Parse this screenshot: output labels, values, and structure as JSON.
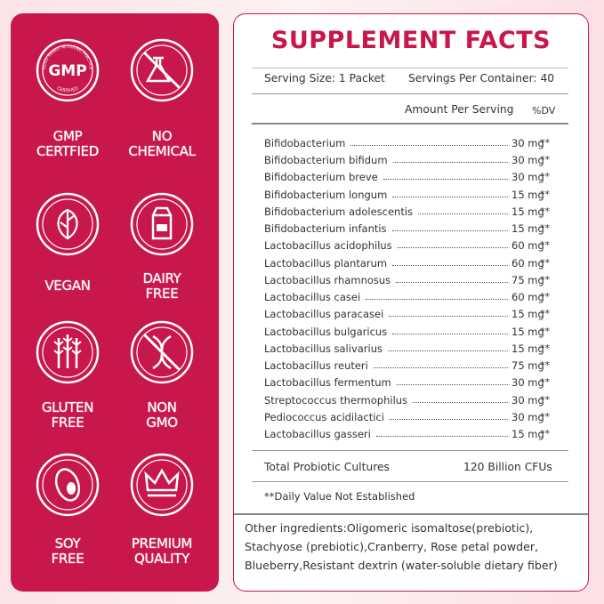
{
  "badges": [
    {
      "lines": [
        "GMP",
        "CERTFIED"
      ]
    },
    {
      "lines": [
        "NO",
        "CHEMICAL"
      ]
    },
    {
      "lines": [
        "VEGAN"
      ]
    },
    {
      "lines": [
        "DAIRY",
        "FREE"
      ]
    },
    {
      "lines": [
        "GLUTEN",
        "FREE"
      ]
    },
    {
      "lines": [
        "NON",
        "GMO"
      ]
    },
    {
      "lines": [
        "SOY",
        "FREE"
      ]
    },
    {
      "lines": [
        "PREMIUM",
        "QUALITY"
      ]
    }
  ],
  "gmp_logo": {
    "center": "GMP",
    "ring_top": "GOOD MANUF ACTURING PRACTICE",
    "ring_bottom": "CERTIFIED"
  },
  "facts": {
    "title": "SUPPLEMENT FACTS",
    "serving_size": "Serving Size: 1 Packet",
    "servings_per_container": "Servings Per Container: 40",
    "amount_header": "Amount Per Serving",
    "dv_header": "%DV",
    "rows": [
      {
        "name": "Bifidobacterium",
        "amount": "30 mg",
        "dv": "**"
      },
      {
        "name": "Bifidobacterium bifidum",
        "amount": "30 mg",
        "dv": "**"
      },
      {
        "name": "Bifidobacterium breve",
        "amount": "30 mg",
        "dv": "**"
      },
      {
        "name": "Bifidobacterium longum",
        "amount": "15 mg",
        "dv": "**"
      },
      {
        "name": "Bifidobacterium adolescentis",
        "amount": "15 mg",
        "dv": "**"
      },
      {
        "name": "Bifidobacterium infantis",
        "amount": "15 mg",
        "dv": "**"
      },
      {
        "name": "Lactobacillus acidophilus",
        "amount": "60 mg",
        "dv": "**"
      },
      {
        "name": "Lactobacillus plantarum",
        "amount": "60 mg",
        "dv": "**"
      },
      {
        "name": "Lactobacillus rhamnosus",
        "amount": "75 mg",
        "dv": "**"
      },
      {
        "name": "Lactobacillus casei",
        "amount": "60 mg",
        "dv": "**"
      },
      {
        "name": "Lactobacillus paracasei",
        "amount": "15 mg",
        "dv": "**"
      },
      {
        "name": "Lactobacillus bulgaricus",
        "amount": "15 mg",
        "dv": "**"
      },
      {
        "name": "Lactobacillus salivarius",
        "amount": "15 mg",
        "dv": "**"
      },
      {
        "name": "Lactobacillus reuteri",
        "amount": "75 mg",
        "dv": "**"
      },
      {
        "name": "Lactobacillus fermentum",
        "amount": "30 mg",
        "dv": "**"
      },
      {
        "name": "Streptococcus thermophilus",
        "amount": "30 mg",
        "dv": "**"
      },
      {
        "name": "Pediococcus acidilactici",
        "amount": "30 mg",
        "dv": "**"
      },
      {
        "name": "Lactobacillus gasseri",
        "amount": "15 mg",
        "dv": "**"
      }
    ],
    "total": {
      "name": "Total Probiotic Cultures",
      "amount": "120 Billion CFUs"
    },
    "footnote": "**Daily Value Not Established",
    "other_ingredients": [
      "Other ingredients:Oligomeric isomaltose(prebiotic),",
      "Stachyose (prebiotic),Cranberry, Rose petal powder,",
      "Blueberry,Resistant dextrin (water-soluble dietary fiber)"
    ]
  }
}
